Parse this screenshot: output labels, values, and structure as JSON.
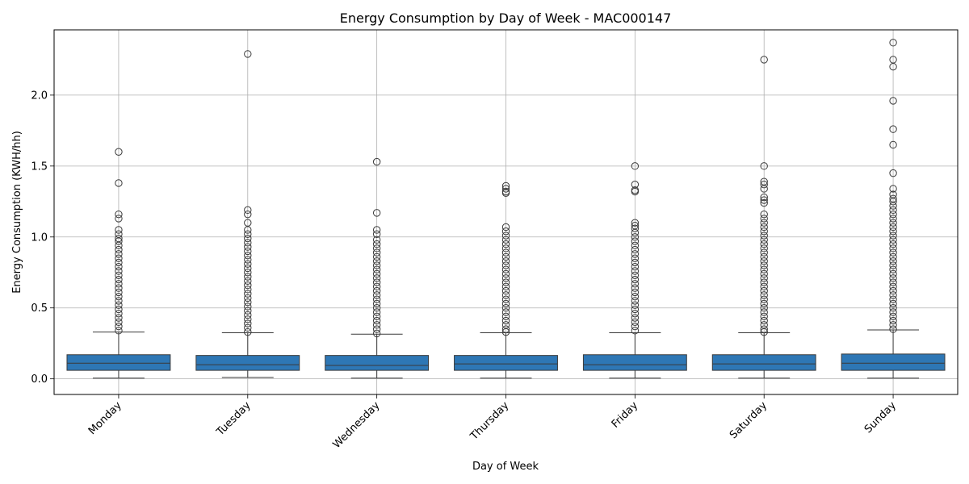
{
  "chart_data": {
    "type": "box",
    "title": "Energy Consumption by Day of Week - MAC000147",
    "xlabel": "Day of Week",
    "ylabel": "Energy Consumption (KWH/hh)",
    "ylim": [
      -0.11,
      2.46
    ],
    "yticks": [
      0.0,
      0.5,
      1.0,
      1.5,
      2.0
    ],
    "ytick_labels": [
      "0.0",
      "0.5",
      "1.0",
      "1.5",
      "2.0"
    ],
    "grid": true,
    "box_color": "#2e77b5",
    "categories": [
      "Monday",
      "Tuesday",
      "Wednesday",
      "Thursday",
      "Friday",
      "Saturday",
      "Sunday"
    ],
    "boxes": [
      {
        "category": "Monday",
        "whisker_low": 0.005,
        "q1": 0.06,
        "median": 0.11,
        "q3": 0.17,
        "whisker_high": 0.33,
        "outliers": [
          1.6,
          1.38,
          1.16,
          1.13,
          1.05,
          1.02,
          0.99,
          0.97,
          0.94,
          0.91,
          0.88,
          0.85,
          0.82,
          0.79,
          0.76,
          0.73,
          0.7,
          0.67,
          0.64,
          0.61,
          0.58,
          0.55,
          0.52,
          0.49,
          0.46,
          0.43,
          0.4,
          0.37,
          0.34
        ]
      },
      {
        "category": "Tuesday",
        "whisker_low": 0.01,
        "q1": 0.06,
        "median": 0.1,
        "q3": 0.165,
        "whisker_high": 0.325,
        "outliers": [
          2.29,
          1.19,
          1.16,
          1.1,
          1.05,
          1.02,
          0.99,
          0.96,
          0.93,
          0.9,
          0.87,
          0.84,
          0.81,
          0.78,
          0.75,
          0.72,
          0.69,
          0.66,
          0.63,
          0.6,
          0.57,
          0.54,
          0.51,
          0.48,
          0.45,
          0.42,
          0.39,
          0.36,
          0.33
        ]
      },
      {
        "category": "Wednesday",
        "whisker_low": 0.005,
        "q1": 0.06,
        "median": 0.095,
        "q3": 0.165,
        "whisker_high": 0.315,
        "outliers": [
          1.53,
          1.17,
          1.05,
          1.02,
          0.98,
          0.95,
          0.92,
          0.89,
          0.86,
          0.83,
          0.8,
          0.77,
          0.74,
          0.71,
          0.68,
          0.65,
          0.62,
          0.59,
          0.56,
          0.53,
          0.5,
          0.47,
          0.44,
          0.41,
          0.38,
          0.35,
          0.32
        ]
      },
      {
        "category": "Thursday",
        "whisker_low": 0.005,
        "q1": 0.06,
        "median": 0.105,
        "q3": 0.165,
        "whisker_high": 0.325,
        "outliers": [
          1.36,
          1.34,
          1.32,
          1.31,
          1.07,
          1.04,
          1.01,
          0.98,
          0.95,
          0.92,
          0.89,
          0.86,
          0.83,
          0.8,
          0.77,
          0.74,
          0.71,
          0.68,
          0.65,
          0.62,
          0.59,
          0.56,
          0.53,
          0.5,
          0.47,
          0.44,
          0.41,
          0.38,
          0.35,
          0.33
        ]
      },
      {
        "category": "Friday",
        "whisker_low": 0.005,
        "q1": 0.06,
        "median": 0.1,
        "q3": 0.17,
        "whisker_high": 0.325,
        "outliers": [
          1.5,
          1.37,
          1.33,
          1.32,
          1.1,
          1.08,
          1.06,
          1.03,
          1.0,
          0.97,
          0.94,
          0.91,
          0.88,
          0.85,
          0.82,
          0.79,
          0.76,
          0.73,
          0.7,
          0.67,
          0.64,
          0.61,
          0.58,
          0.55,
          0.52,
          0.49,
          0.46,
          0.43,
          0.4,
          0.37,
          0.34
        ]
      },
      {
        "category": "Saturday",
        "whisker_low": 0.005,
        "q1": 0.06,
        "median": 0.105,
        "q3": 0.17,
        "whisker_high": 0.325,
        "outliers": [
          2.25,
          1.5,
          1.39,
          1.37,
          1.34,
          1.28,
          1.26,
          1.24,
          1.16,
          1.13,
          1.1,
          1.07,
          1.04,
          1.01,
          0.98,
          0.95,
          0.92,
          0.89,
          0.86,
          0.83,
          0.8,
          0.77,
          0.74,
          0.71,
          0.68,
          0.65,
          0.62,
          0.59,
          0.56,
          0.53,
          0.5,
          0.47,
          0.44,
          0.41,
          0.38,
          0.35,
          0.33
        ]
      },
      {
        "category": "Sunday",
        "whisker_low": 0.005,
        "q1": 0.06,
        "median": 0.11,
        "q3": 0.175,
        "whisker_high": 0.345,
        "outliers": [
          2.37,
          2.25,
          2.2,
          1.96,
          1.76,
          1.65,
          1.45,
          1.34,
          1.3,
          1.27,
          1.25,
          1.22,
          1.19,
          1.16,
          1.13,
          1.1,
          1.07,
          1.04,
          1.01,
          0.98,
          0.95,
          0.92,
          0.89,
          0.86,
          0.83,
          0.8,
          0.77,
          0.74,
          0.71,
          0.68,
          0.65,
          0.62,
          0.59,
          0.56,
          0.53,
          0.5,
          0.47,
          0.44,
          0.41,
          0.38,
          0.35
        ]
      }
    ]
  }
}
